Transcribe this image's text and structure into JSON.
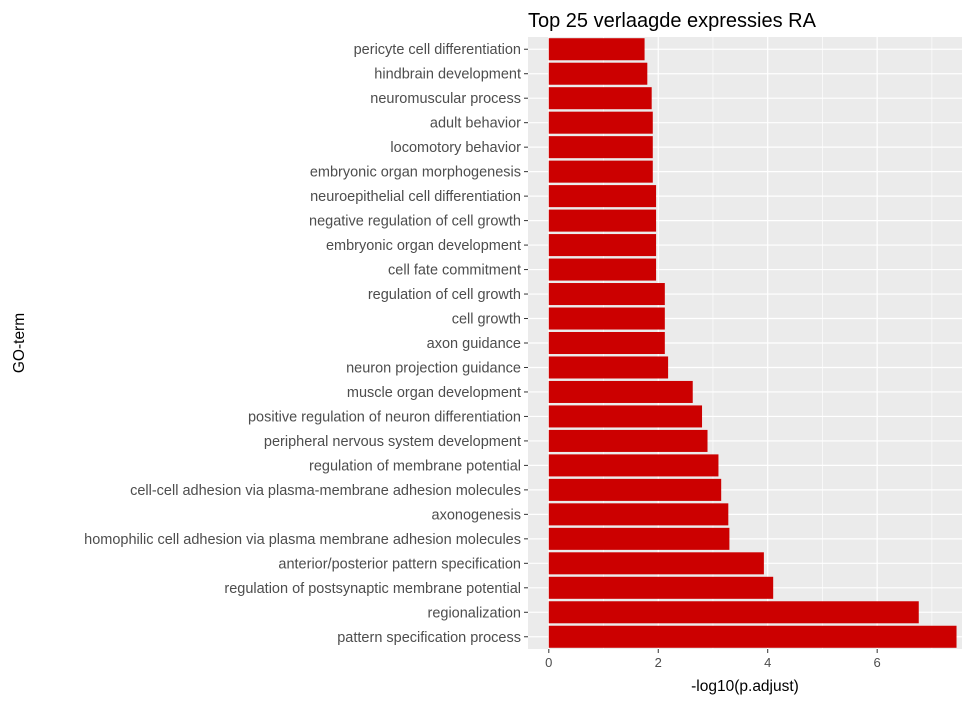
{
  "chart_data": {
    "type": "bar",
    "orientation": "horizontal",
    "title": "Top 25 verlaagde expressies RA",
    "xlabel": "-log10(p.adjust)",
    "ylabel": "GO-term",
    "xlim": [
      -0.38,
      7.55
    ],
    "xticks": [
      0,
      2,
      4,
      6
    ],
    "grid": true,
    "bar_color": "#CC0000",
    "panel_background": "#EBEBEB",
    "categories": [
      "pericyte cell differentiation",
      "hindbrain development",
      "neuromuscular process",
      "adult behavior",
      "locomotory behavior",
      "embryonic organ morphogenesis",
      "neuroepithelial cell differentiation",
      "negative regulation of cell growth",
      "embryonic organ development",
      "cell fate commitment",
      "regulation of cell growth",
      "cell growth",
      "axon guidance",
      "neuron projection guidance",
      "muscle organ development",
      "positive regulation of neuron differentiation",
      "peripheral nervous system development",
      "regulation of membrane potential",
      "cell-cell adhesion via plasma-membrane adhesion molecules",
      "axonogenesis",
      "homophilic cell adhesion via plasma membrane adhesion molecules",
      "anterior/posterior pattern specification",
      "regulation of postsynaptic membrane potential",
      "regionalization",
      "pattern specification process"
    ],
    "values": [
      1.75,
      1.8,
      1.88,
      1.9,
      1.9,
      1.9,
      1.96,
      1.96,
      1.96,
      1.96,
      2.12,
      2.12,
      2.12,
      2.18,
      2.63,
      2.8,
      2.9,
      3.1,
      3.15,
      3.28,
      3.3,
      3.93,
      4.1,
      6.76,
      7.45
    ]
  }
}
